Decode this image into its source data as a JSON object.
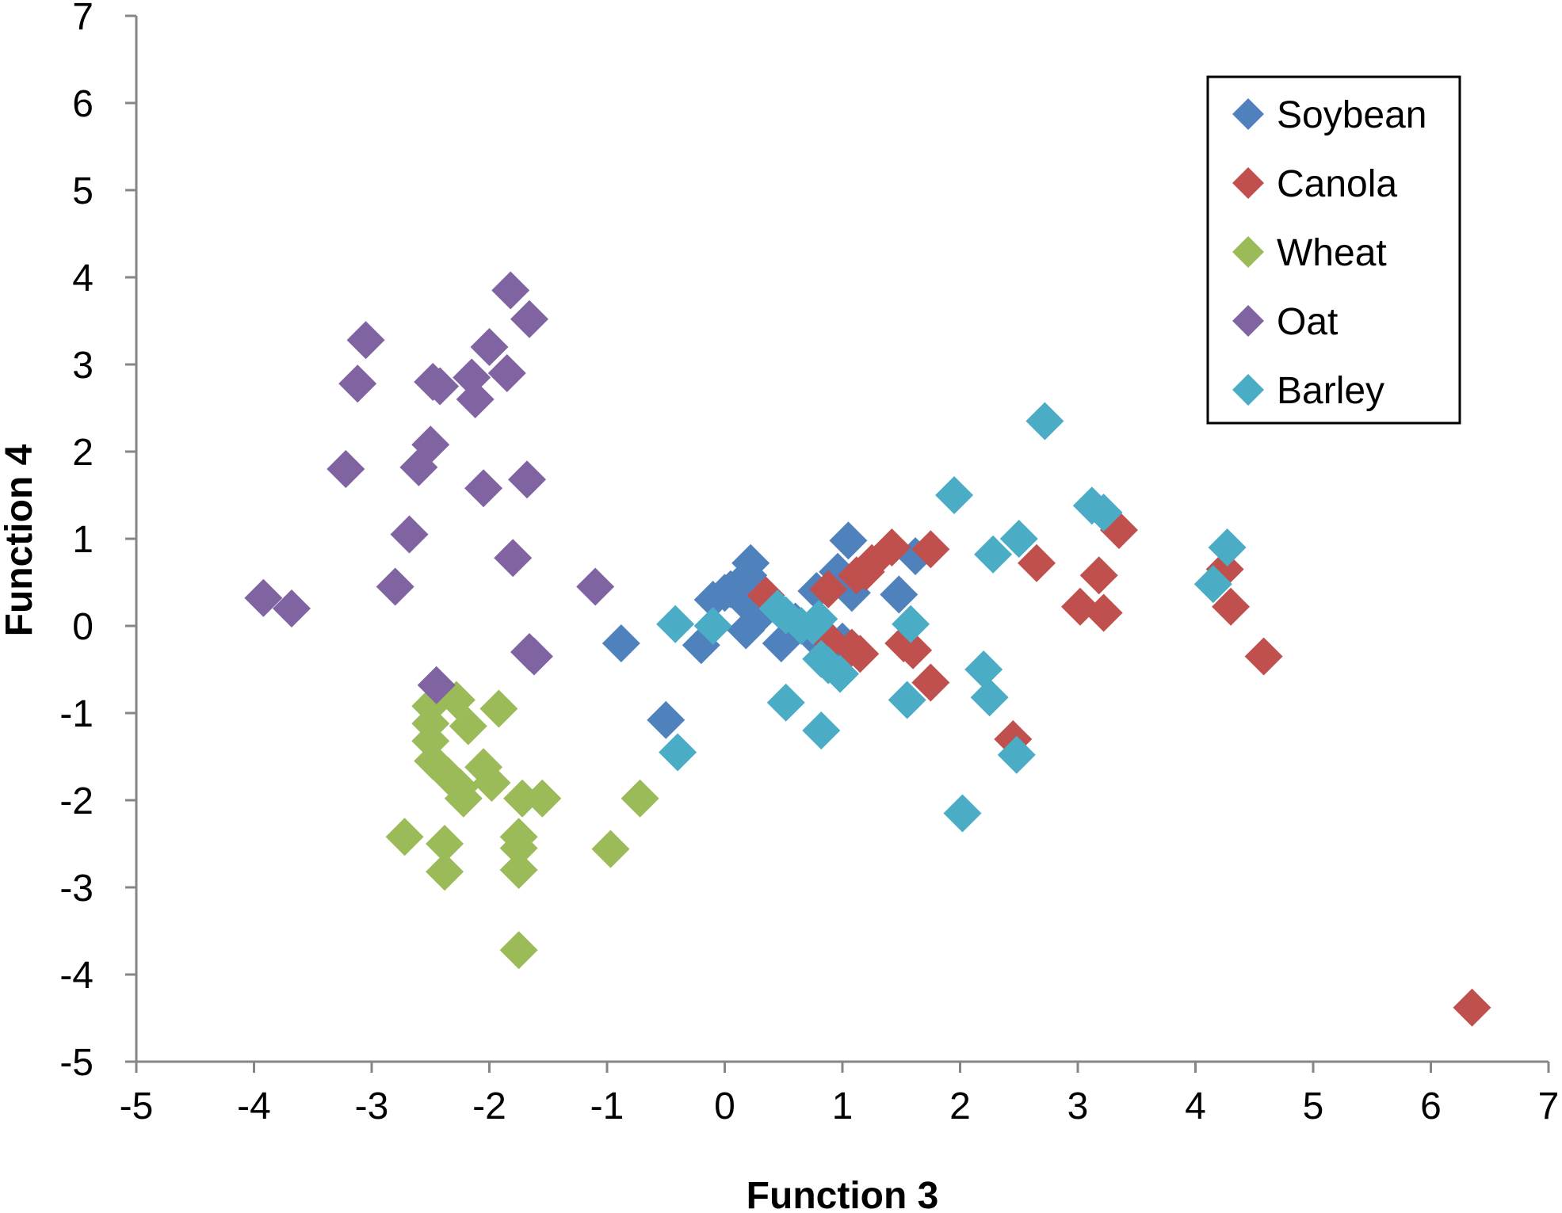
{
  "chart_data": {
    "type": "scatter",
    "title": "",
    "xlabel": "Function 3",
    "ylabel": "Function 4",
    "xlim": [
      -5,
      7
    ],
    "ylim": [
      -5,
      7
    ],
    "xticks": [
      -5,
      -4,
      -3,
      -2,
      -1,
      0,
      1,
      2,
      3,
      4,
      5,
      6,
      7
    ],
    "yticks": [
      -5,
      -4,
      -3,
      -2,
      -1,
      0,
      1,
      2,
      3,
      4,
      5,
      6,
      7
    ],
    "grid": false,
    "legend_position": "top-right",
    "marker": "diamond",
    "series": [
      {
        "name": "Soybean",
        "color": "#4F81BD",
        "points": [
          [
            -0.88,
            -0.2
          ],
          [
            -0.5,
            -1.08
          ],
          [
            -0.2,
            -0.22
          ],
          [
            -0.1,
            0.3
          ],
          [
            0.0,
            0.38
          ],
          [
            0.05,
            0.42
          ],
          [
            0.1,
            0.45
          ],
          [
            0.15,
            0.3
          ],
          [
            0.18,
            -0.05
          ],
          [
            0.2,
            0.58
          ],
          [
            0.22,
            0.72
          ],
          [
            0.28,
            0.22
          ],
          [
            0.3,
            0.12
          ],
          [
            0.48,
            -0.2
          ],
          [
            0.6,
            0.05
          ],
          [
            0.72,
            -0.08
          ],
          [
            0.78,
            0.4
          ],
          [
            0.85,
            -0.12
          ],
          [
            0.92,
            -0.2
          ],
          [
            0.96,
            0.62
          ],
          [
            1.0,
            -0.18
          ],
          [
            1.05,
            0.98
          ],
          [
            1.08,
            0.38
          ],
          [
            1.48,
            0.36
          ],
          [
            1.62,
            0.8
          ]
        ]
      },
      {
        "name": "Canola",
        "color": "#C0504D",
        "points": [
          [
            0.35,
            0.35
          ],
          [
            0.88,
            0.42
          ],
          [
            0.9,
            -0.18
          ],
          [
            1.08,
            -0.25
          ],
          [
            1.12,
            0.58
          ],
          [
            1.15,
            -0.32
          ],
          [
            1.2,
            0.62
          ],
          [
            1.25,
            0.72
          ],
          [
            1.42,
            0.9
          ],
          [
            1.52,
            -0.2
          ],
          [
            1.6,
            -0.28
          ],
          [
            1.75,
            -0.65
          ],
          [
            1.75,
            0.88
          ],
          [
            2.45,
            -1.3
          ],
          [
            2.65,
            0.72
          ],
          [
            3.02,
            0.22
          ],
          [
            3.18,
            0.58
          ],
          [
            3.22,
            0.15
          ],
          [
            3.35,
            1.1
          ],
          [
            4.25,
            0.65
          ],
          [
            4.3,
            0.22
          ],
          [
            4.58,
            -0.35
          ],
          [
            6.35,
            -4.38
          ]
        ]
      },
      {
        "name": "Wheat",
        "color": "#9BBB59",
        "points": [
          [
            -2.72,
            -2.42
          ],
          [
            -2.5,
            -0.92
          ],
          [
            -2.5,
            -1.12
          ],
          [
            -2.5,
            -1.32
          ],
          [
            -2.48,
            -1.55
          ],
          [
            -2.38,
            -2.5
          ],
          [
            -2.38,
            -2.82
          ],
          [
            -2.35,
            -1.72
          ],
          [
            -2.28,
            -0.85
          ],
          [
            -2.25,
            -1.85
          ],
          [
            -2.22,
            -1.98
          ],
          [
            -2.18,
            -1.15
          ],
          [
            -2.05,
            -1.62
          ],
          [
            -1.98,
            -1.8
          ],
          [
            -1.92,
            -0.95
          ],
          [
            -1.75,
            -2.42
          ],
          [
            -1.75,
            -2.55
          ],
          [
            -1.75,
            -2.8
          ],
          [
            -1.75,
            -3.72
          ],
          [
            -1.72,
            -1.98
          ],
          [
            -1.55,
            -1.98
          ],
          [
            -0.97,
            -2.56
          ],
          [
            -0.72,
            -1.98
          ]
        ]
      },
      {
        "name": "Oat",
        "color": "#8064A2",
        "points": [
          [
            -3.92,
            0.32
          ],
          [
            -3.68,
            0.2
          ],
          [
            -3.22,
            1.8
          ],
          [
            -3.12,
            2.78
          ],
          [
            -3.05,
            3.28
          ],
          [
            -2.8,
            0.45
          ],
          [
            -2.68,
            1.05
          ],
          [
            -2.6,
            1.82
          ],
          [
            -2.5,
            2.08
          ],
          [
            -2.48,
            2.8
          ],
          [
            -2.42,
            2.75
          ],
          [
            -2.45,
            -0.68
          ],
          [
            -2.15,
            2.85
          ],
          [
            -2.12,
            2.6
          ],
          [
            -2.05,
            1.58
          ],
          [
            -2.0,
            3.2
          ],
          [
            -1.85,
            2.9
          ],
          [
            -1.82,
            3.85
          ],
          [
            -1.8,
            0.78
          ],
          [
            -1.68,
            1.68
          ],
          [
            -1.66,
            3.52
          ],
          [
            -1.66,
            -0.3
          ],
          [
            -1.62,
            -0.35
          ],
          [
            -1.1,
            0.45
          ]
        ]
      },
      {
        "name": "Barley",
        "color": "#4BACC6",
        "points": [
          [
            -0.42,
            0.02
          ],
          [
            -0.4,
            -1.45
          ],
          [
            -0.1,
            0.0
          ],
          [
            0.45,
            0.2
          ],
          [
            0.52,
            0.12
          ],
          [
            0.52,
            -0.88
          ],
          [
            0.65,
            0.0
          ],
          [
            0.75,
            0.0
          ],
          [
            0.8,
            0.08
          ],
          [
            0.82,
            -0.38
          ],
          [
            0.82,
            -1.2
          ],
          [
            0.88,
            -0.45
          ],
          [
            0.98,
            -0.55
          ],
          [
            1.55,
            -0.85
          ],
          [
            1.58,
            0.02
          ],
          [
            1.95,
            1.5
          ],
          [
            2.02,
            -2.15
          ],
          [
            2.2,
            -0.5
          ],
          [
            2.25,
            -0.82
          ],
          [
            2.28,
            0.82
          ],
          [
            2.48,
            -1.48
          ],
          [
            2.5,
            1.0
          ],
          [
            2.72,
            2.35
          ],
          [
            3.12,
            1.38
          ],
          [
            3.22,
            1.3
          ],
          [
            4.15,
            0.48
          ],
          [
            4.27,
            0.9
          ]
        ]
      }
    ]
  }
}
